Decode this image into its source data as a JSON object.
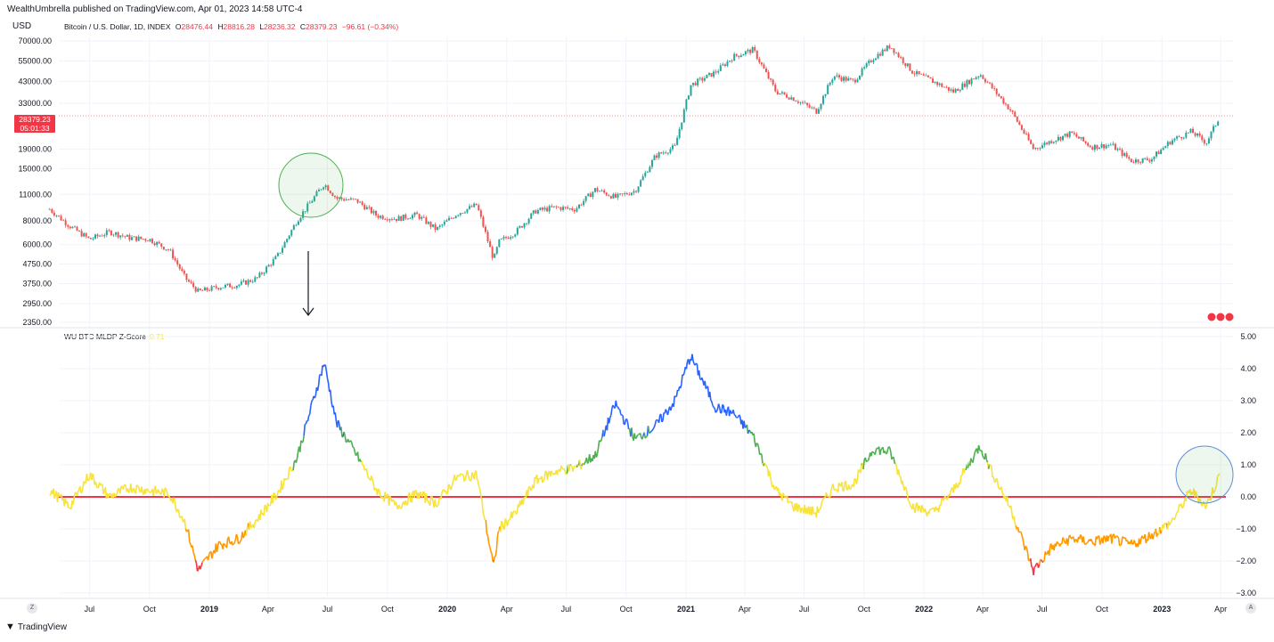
{
  "header": {
    "published": "WealthUmbrella published on TradingView.com, Apr 01, 2023 14:58 UTC-4"
  },
  "price_pane": {
    "unit": "USD",
    "symbol": "Bitcoin / U.S. Dollar, 1D, INDEX",
    "ohlc": {
      "o_label": "O",
      "o": "28476.44",
      "h_label": "H",
      "h": "28816.28",
      "l_label": "L",
      "l": "28236.32",
      "c_label": "C",
      "c": "28379.23",
      "change": "−96.61 (−0.34%)"
    },
    "last_price": "28379.23",
    "countdown": "05:01:33"
  },
  "indicator_pane": {
    "name": "WU BTC MLDP Z-Score",
    "value": "0.71"
  },
  "footer": {
    "brand": "TradingView",
    "left_btn": "Z",
    "right_btn": "A"
  },
  "colors": {
    "bull": "#26a69a",
    "bear": "#ef5350",
    "zero_line": "#f23645",
    "z_yellow": "#f7e33a",
    "z_green": "#4caf50",
    "z_blue": "#2962ff",
    "z_orange": "#ff9800",
    "z_red": "#f23645",
    "grid": "#f0f3fa"
  },
  "chart_data": [
    {
      "type": "line",
      "series_style": "candlestick",
      "yscale": "log",
      "ylim": [
        2350,
        70000
      ],
      "ytick_labels": [
        "70000.00",
        "55000.00",
        "43000.00",
        "33000.00",
        "19000.00",
        "15000.00",
        "11000.00",
        "8000.00",
        "6000.00",
        "4750.00",
        "3750.00",
        "2950.00",
        "2350.00"
      ],
      "x_tick_labels": [
        "Jul",
        "Oct",
        "2019",
        "Apr",
        "Jul",
        "Oct",
        "2020",
        "Apr",
        "Jul",
        "Oct",
        "2021",
        "Apr",
        "Jul",
        "Oct",
        "2022",
        "Apr",
        "Jul",
        "Oct",
        "2023",
        "Apr"
      ],
      "x_dates": [
        "2018-05-01",
        "2018-06-01",
        "2018-07-01",
        "2018-08-01",
        "2018-09-01",
        "2018-10-01",
        "2018-11-01",
        "2018-11-25",
        "2018-12-15",
        "2019-01-15",
        "2019-02-15",
        "2019-03-15",
        "2019-04-15",
        "2019-05-15",
        "2019-06-26",
        "2019-07-15",
        "2019-08-15",
        "2019-09-15",
        "2019-10-15",
        "2019-11-15",
        "2019-12-15",
        "2020-01-15",
        "2020-02-15",
        "2020-03-12",
        "2020-03-20",
        "2020-04-15",
        "2020-05-15",
        "2020-06-15",
        "2020-07-15",
        "2020-08-15",
        "2020-09-15",
        "2020-10-15",
        "2020-11-15",
        "2020-12-15",
        "2021-01-08",
        "2021-02-15",
        "2021-03-15",
        "2021-04-14",
        "2021-05-19",
        "2021-06-15",
        "2021-07-20",
        "2021-08-15",
        "2021-09-15",
        "2021-10-15",
        "2021-11-10",
        "2021-12-15",
        "2022-01-15",
        "2022-02-15",
        "2022-03-28",
        "2022-04-15",
        "2022-05-15",
        "2022-06-18",
        "2022-07-15",
        "2022-08-15",
        "2022-09-15",
        "2022-10-15",
        "2022-11-15",
        "2022-12-15",
        "2023-01-15",
        "2023-02-15",
        "2023-03-10",
        "2023-03-31"
      ],
      "close": [
        9200,
        7500,
        6400,
        7000,
        6500,
        6400,
        5600,
        4000,
        3400,
        3600,
        3700,
        4000,
        5200,
        8000,
        12500,
        10500,
        10200,
        8500,
        8200,
        8600,
        7200,
        8700,
        9700,
        5000,
        6200,
        7000,
        9000,
        9400,
        9200,
        11700,
        10600,
        11500,
        17500,
        19500,
        41000,
        48000,
        58000,
        63000,
        38000,
        35000,
        30000,
        46000,
        43000,
        57000,
        66000,
        48000,
        43000,
        38000,
        47000,
        40000,
        30000,
        19000,
        21000,
        23000,
        19500,
        20000,
        16500,
        16800,
        21000,
        23500,
        20500,
        28379
      ],
      "annotation": "highlight circle near 2019-06 peak with downward arrow to indicator pane"
    },
    {
      "type": "line",
      "title": "WU BTC MLDP Z-Score",
      "ylim": [
        -3.0,
        5.0
      ],
      "ytick_labels": [
        "5.00",
        "4.00",
        "3.00",
        "2.00",
        "1.00",
        "0.00",
        "−1.00",
        "−2.00",
        "−3.00"
      ],
      "x_dates": [
        "2018-05-01",
        "2018-06-01",
        "2018-07-01",
        "2018-08-01",
        "2018-09-01",
        "2018-10-01",
        "2018-11-01",
        "2018-11-25",
        "2018-12-15",
        "2019-01-15",
        "2019-02-15",
        "2019-03-15",
        "2019-04-15",
        "2019-05-15",
        "2019-06-26",
        "2019-07-15",
        "2019-08-15",
        "2019-09-15",
        "2019-10-15",
        "2019-11-15",
        "2019-12-15",
        "2020-01-15",
        "2020-02-15",
        "2020-03-12",
        "2020-03-20",
        "2020-04-15",
        "2020-05-15",
        "2020-06-15",
        "2020-07-15",
        "2020-08-15",
        "2020-09-15",
        "2020-10-15",
        "2020-11-15",
        "2020-12-15",
        "2021-01-08",
        "2021-02-15",
        "2021-03-15",
        "2021-04-14",
        "2021-05-19",
        "2021-06-15",
        "2021-07-20",
        "2021-08-15",
        "2021-09-15",
        "2021-10-15",
        "2021-11-10",
        "2021-12-15",
        "2022-01-15",
        "2022-02-15",
        "2022-03-28",
        "2022-04-15",
        "2022-05-15",
        "2022-06-18",
        "2022-07-15",
        "2022-08-15",
        "2022-09-15",
        "2022-10-15",
        "2022-11-15",
        "2022-12-15",
        "2023-01-15",
        "2023-02-15",
        "2023-03-10",
        "2023-03-31"
      ],
      "values": [
        0.2,
        -0.3,
        0.7,
        0.0,
        0.3,
        0.2,
        0.1,
        -0.8,
        -2.3,
        -1.5,
        -1.3,
        -0.7,
        0.1,
        1.2,
        4.2,
        2.3,
        1.3,
        0.2,
        -0.3,
        0.1,
        -0.2,
        0.6,
        0.7,
        -2.2,
        -1.0,
        -0.5,
        0.5,
        0.8,
        0.9,
        1.3,
        2.9,
        1.8,
        2.2,
        3.0,
        4.4,
        2.8,
        2.6,
        1.9,
        0.2,
        -0.3,
        -0.5,
        0.3,
        0.4,
        1.5,
        1.4,
        -0.3,
        -0.5,
        0.2,
        1.6,
        0.8,
        -0.4,
        -2.3,
        -1.6,
        -1.3,
        -1.4,
        -1.3,
        -1.5,
        -1.2,
        -0.8,
        0.2,
        -0.3,
        0.71
      ],
      "zero_line": 0,
      "color_bands": {
        "red": "< -2",
        "orange": "-2 to -1",
        "yellow": "-1 to 1",
        "green": "1 to 2",
        "blue": "> 2"
      },
      "annotation": "highlight circle at latest value near 0.71"
    }
  ]
}
